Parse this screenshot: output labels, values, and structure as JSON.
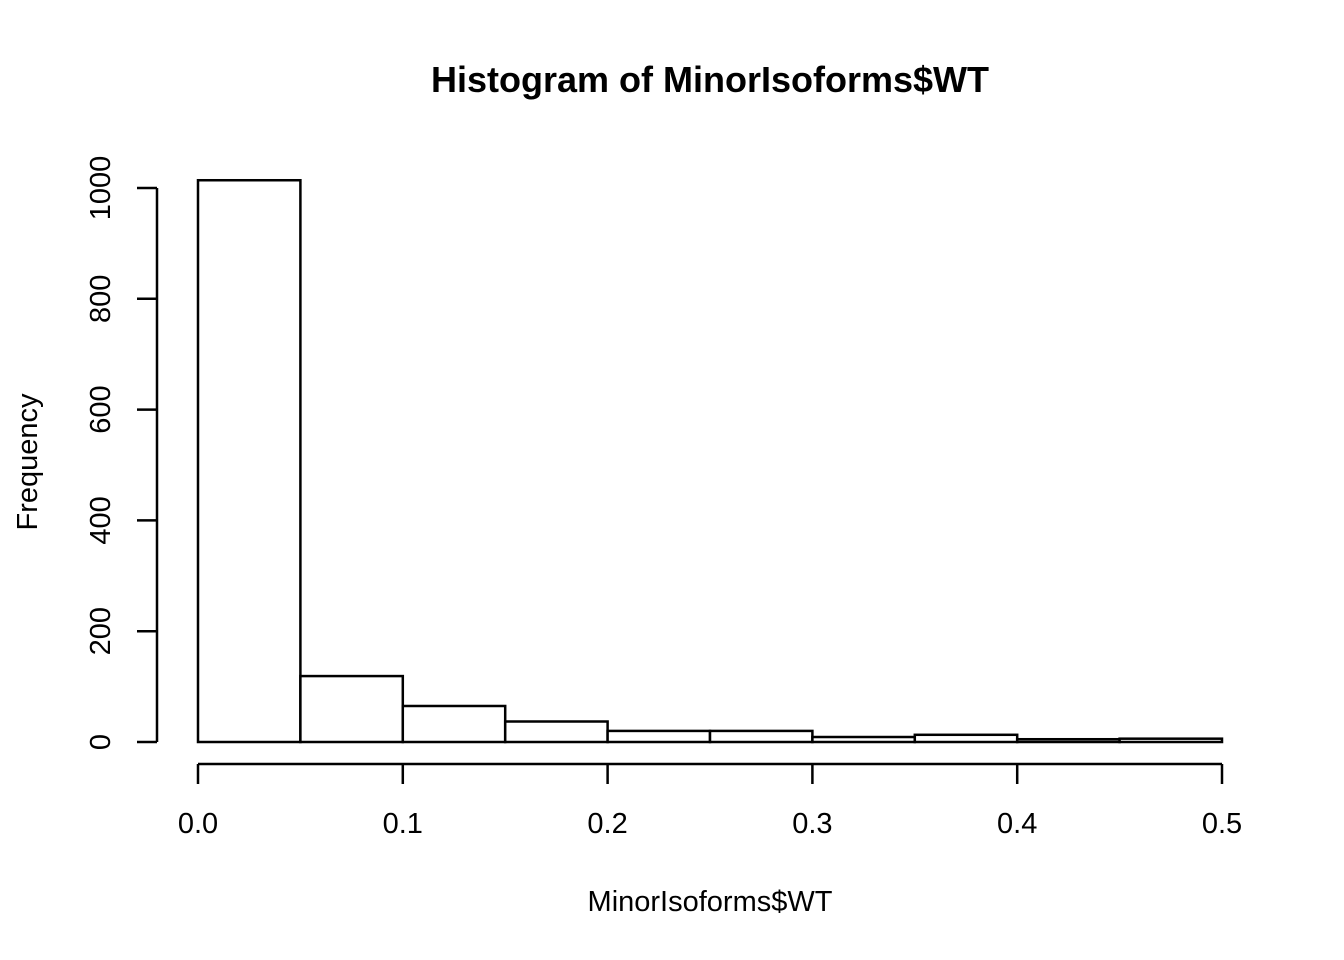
{
  "chart_data": {
    "type": "bar",
    "title": "Histogram of MinorIsoforms$WT",
    "xlabel": "MinorIsoforms$WT",
    "ylabel": "Frequency",
    "bins": [
      {
        "x0": 0.0,
        "x1": 0.05,
        "count": 1014
      },
      {
        "x0": 0.05,
        "x1": 0.1,
        "count": 119
      },
      {
        "x0": 0.1,
        "x1": 0.15,
        "count": 65
      },
      {
        "x0": 0.15,
        "x1": 0.2,
        "count": 37
      },
      {
        "x0": 0.2,
        "x1": 0.25,
        "count": 20
      },
      {
        "x0": 0.25,
        "x1": 0.3,
        "count": 20
      },
      {
        "x0": 0.3,
        "x1": 0.35,
        "count": 9
      },
      {
        "x0": 0.35,
        "x1": 0.4,
        "count": 13
      },
      {
        "x0": 0.4,
        "x1": 0.45,
        "count": 5
      },
      {
        "x0": 0.45,
        "x1": 0.5,
        "count": 6
      }
    ],
    "xlim": [
      0,
      0.5
    ],
    "ylim": [
      0,
      1000
    ],
    "x_ticks": [
      "0.0",
      "0.1",
      "0.2",
      "0.3",
      "0.4",
      "0.5"
    ],
    "y_ticks": [
      "0",
      "200",
      "400",
      "600",
      "800",
      "1000"
    ],
    "grid": false,
    "legend": "none",
    "colors": {
      "bar_fill": "#ffffff",
      "bar_stroke": "#000000"
    }
  }
}
